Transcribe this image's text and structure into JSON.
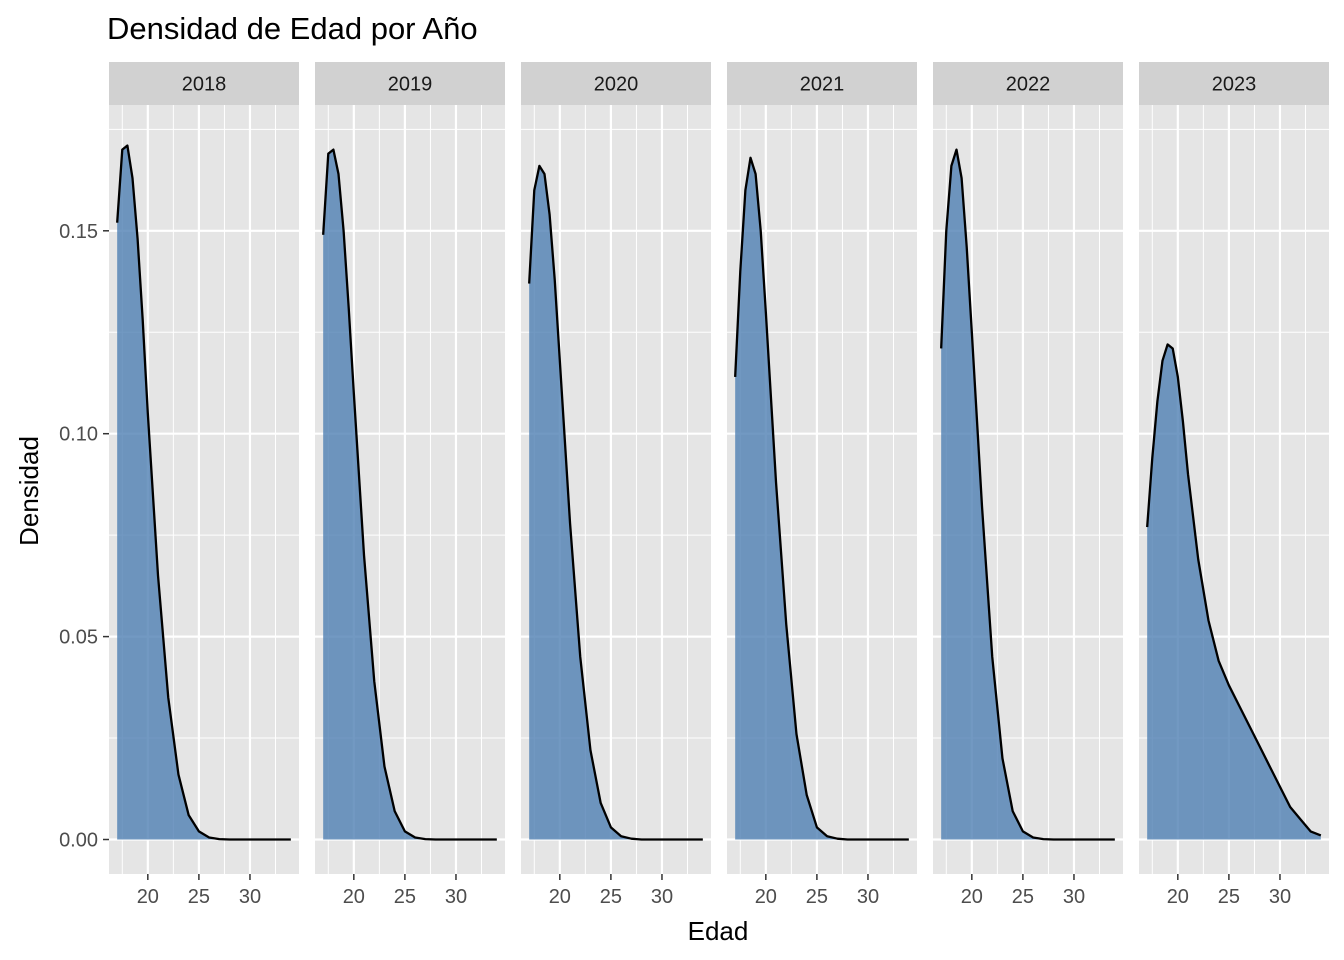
{
  "chart_data": {
    "type": "area",
    "title": "Densidad de Edad por Año",
    "xlabel": "Edad",
    "ylabel": "Densidad",
    "xlim": [
      16.2,
      34.8
    ],
    "ylim": [
      -0.0085,
      0.181
    ],
    "x_ticks": [
      20,
      25,
      30
    ],
    "x_minor_ticks": [
      17.5,
      22.5,
      27.5,
      32.5
    ],
    "y_ticks": [
      0.0,
      0.05,
      0.1,
      0.15
    ],
    "y_tick_labels": [
      "0.00",
      "0.05",
      "0.10",
      "0.15"
    ],
    "y_minor_ticks": [
      0.025,
      0.075,
      0.125,
      0.175
    ],
    "grid": true,
    "facets": [
      "2018",
      "2019",
      "2020",
      "2021",
      "2022",
      "2023"
    ],
    "colors": {
      "fill": "#4f7fb3",
      "fill_opacity": 0.8,
      "line": "#000000",
      "panel_bg": "#e5e5e5",
      "strip_bg": "#d1d1d1",
      "grid": "#ffffff"
    },
    "series": [
      {
        "name": "2018",
        "x": [
          17,
          17.5,
          18,
          18.5,
          19,
          19.5,
          20,
          21,
          22,
          23,
          24,
          25,
          26,
          27,
          28,
          30,
          32,
          34
        ],
        "y": [
          0.152,
          0.17,
          0.171,
          0.163,
          0.148,
          0.128,
          0.105,
          0.065,
          0.035,
          0.016,
          0.006,
          0.002,
          0.0005,
          0.0001,
          0,
          0,
          0,
          0
        ]
      },
      {
        "name": "2019",
        "x": [
          17,
          17.5,
          18,
          18.5,
          19,
          19.5,
          20,
          21,
          22,
          23,
          24,
          25,
          26,
          27,
          28,
          30,
          32,
          34
        ],
        "y": [
          0.149,
          0.169,
          0.17,
          0.164,
          0.15,
          0.131,
          0.11,
          0.07,
          0.039,
          0.018,
          0.007,
          0.002,
          0.0005,
          0.0001,
          0,
          0,
          0,
          0
        ]
      },
      {
        "name": "2020",
        "x": [
          17,
          17.5,
          18,
          18.5,
          19,
          19.5,
          20,
          21,
          22,
          23,
          24,
          25,
          26,
          27,
          28,
          30,
          32,
          34
        ],
        "y": [
          0.137,
          0.16,
          0.166,
          0.164,
          0.154,
          0.138,
          0.118,
          0.078,
          0.045,
          0.022,
          0.009,
          0.003,
          0.0008,
          0.0002,
          0,
          0,
          0,
          0
        ]
      },
      {
        "name": "2021",
        "x": [
          17,
          17.5,
          18,
          18.5,
          19,
          19.5,
          20,
          21,
          22,
          23,
          24,
          25,
          26,
          27,
          28,
          30,
          32,
          34
        ],
        "y": [
          0.114,
          0.14,
          0.16,
          0.168,
          0.164,
          0.15,
          0.13,
          0.088,
          0.053,
          0.026,
          0.011,
          0.003,
          0.0008,
          0.0002,
          0,
          0,
          0,
          0
        ]
      },
      {
        "name": "2022",
        "x": [
          17,
          17.5,
          18,
          18.5,
          19,
          19.5,
          20,
          21,
          22,
          23,
          24,
          25,
          26,
          27,
          28,
          30,
          32,
          34
        ],
        "y": [
          0.121,
          0.15,
          0.166,
          0.17,
          0.163,
          0.146,
          0.125,
          0.082,
          0.045,
          0.02,
          0.007,
          0.002,
          0.0005,
          0.0001,
          0,
          0,
          0,
          0
        ]
      },
      {
        "name": "2023",
        "x": [
          17,
          17.5,
          18,
          18.5,
          19,
          19.5,
          20,
          20.5,
          21,
          22,
          23,
          24,
          25,
          26,
          27,
          28,
          29,
          30,
          31,
          32,
          33,
          34
        ],
        "y": [
          0.077,
          0.094,
          0.108,
          0.118,
          0.122,
          0.121,
          0.114,
          0.103,
          0.09,
          0.069,
          0.054,
          0.044,
          0.038,
          0.033,
          0.028,
          0.023,
          0.018,
          0.013,
          0.008,
          0.005,
          0.002,
          0.001
        ]
      }
    ]
  }
}
